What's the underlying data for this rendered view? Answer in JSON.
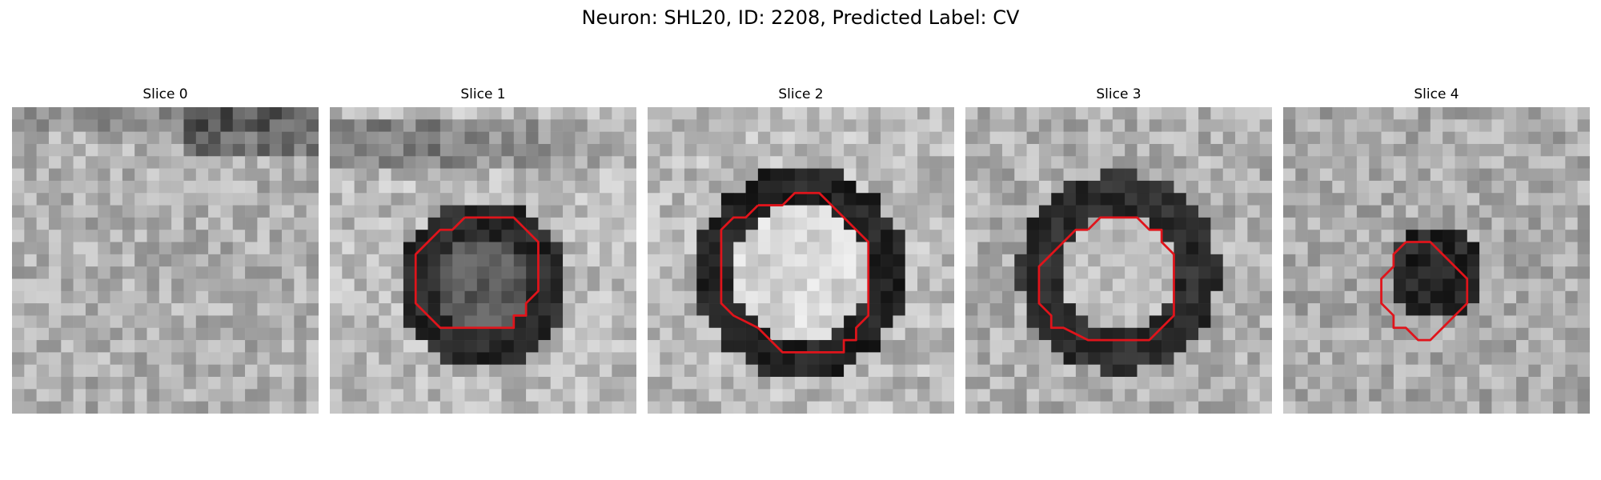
{
  "figure": {
    "title": "Neuron: SHL20, ID: 2208, Predicted Label: CV"
  },
  "contour_color": "#e0141b",
  "panels": [
    {
      "title": "Slice 0",
      "blob": null,
      "base": 175,
      "contour": []
    },
    {
      "title": "Slice 1",
      "blob": {
        "cx": 12.5,
        "cy": 14.5,
        "r": 5.5,
        "ring_width": 1.5,
        "inner": 90,
        "ring": 40
      },
      "base": 185,
      "contour": [
        [
          11,
          9
        ],
        [
          15,
          9
        ],
        [
          16,
          10
        ],
        [
          17,
          11
        ],
        [
          17,
          13
        ],
        [
          17,
          15
        ],
        [
          16,
          16
        ],
        [
          16,
          17
        ],
        [
          15,
          17
        ],
        [
          15,
          18
        ],
        [
          14,
          18
        ],
        [
          13,
          18
        ],
        [
          10,
          18
        ],
        [
          9,
          18
        ],
        [
          8,
          17
        ],
        [
          7,
          16
        ],
        [
          7,
          14
        ],
        [
          7,
          12
        ],
        [
          8,
          11
        ],
        [
          9,
          10
        ],
        [
          10,
          10
        ],
        [
          11,
          9
        ]
      ]
    },
    {
      "title": "Slice 2",
      "blob": {
        "cx": 12.5,
        "cy": 13.5,
        "r": 7,
        "ring_width": 1.6,
        "inner": 215,
        "ring": 35
      },
      "base": 185,
      "contour": [
        [
          9,
          8
        ],
        [
          11,
          8
        ],
        [
          12,
          7
        ],
        [
          14,
          7
        ],
        [
          15,
          8
        ],
        [
          16,
          9
        ],
        [
          17,
          10
        ],
        [
          18,
          11
        ],
        [
          18,
          15
        ],
        [
          18,
          17
        ],
        [
          17,
          18
        ],
        [
          17,
          19
        ],
        [
          16,
          19
        ],
        [
          16,
          20
        ],
        [
          15,
          20
        ],
        [
          14,
          20
        ],
        [
          11,
          20
        ],
        [
          10,
          19
        ],
        [
          9,
          18
        ],
        [
          7,
          17
        ],
        [
          6,
          16
        ],
        [
          6,
          13
        ],
        [
          6,
          10
        ],
        [
          7,
          9
        ],
        [
          8,
          9
        ],
        [
          9,
          8
        ]
      ]
    },
    {
      "title": "Slice 3",
      "blob": {
        "cx": 12.5,
        "cy": 13.5,
        "r": 6.5,
        "ring_width": 1.6,
        "inner": 190,
        "ring": 45
      },
      "base": 175,
      "contour": [
        [
          10,
          10
        ],
        [
          11,
          9
        ],
        [
          12,
          9
        ],
        [
          14,
          9
        ],
        [
          15,
          10
        ],
        [
          16,
          10
        ],
        [
          16,
          11
        ],
        [
          17,
          12
        ],
        [
          17,
          14
        ],
        [
          17,
          17
        ],
        [
          16,
          18
        ],
        [
          15,
          19
        ],
        [
          13,
          19
        ],
        [
          10,
          19
        ],
        [
          8,
          18
        ],
        [
          7,
          18
        ],
        [
          7,
          17
        ],
        [
          6,
          16
        ],
        [
          6,
          14
        ],
        [
          6,
          13
        ],
        [
          7,
          12
        ],
        [
          8,
          11
        ],
        [
          9,
          10
        ],
        [
          10,
          10
        ]
      ]
    },
    {
      "title": "Slice 4",
      "blob": {
        "cx": 12.5,
        "cy": 13.5,
        "r": 4,
        "ring_width": 0,
        "inner": 40,
        "ring": 40
      },
      "base": 170,
      "contour": [
        [
          10,
          11
        ],
        [
          12,
          11
        ],
        [
          13,
          12
        ],
        [
          14,
          13
        ],
        [
          15,
          14
        ],
        [
          15,
          16
        ],
        [
          14,
          17
        ],
        [
          13,
          18
        ],
        [
          12,
          19
        ],
        [
          11,
          19
        ],
        [
          10,
          18
        ],
        [
          9,
          18
        ],
        [
          9,
          17
        ],
        [
          8,
          16
        ],
        [
          8,
          15
        ],
        [
          8,
          14
        ],
        [
          9,
          13
        ],
        [
          9,
          12
        ],
        [
          10,
          11
        ]
      ]
    }
  ]
}
